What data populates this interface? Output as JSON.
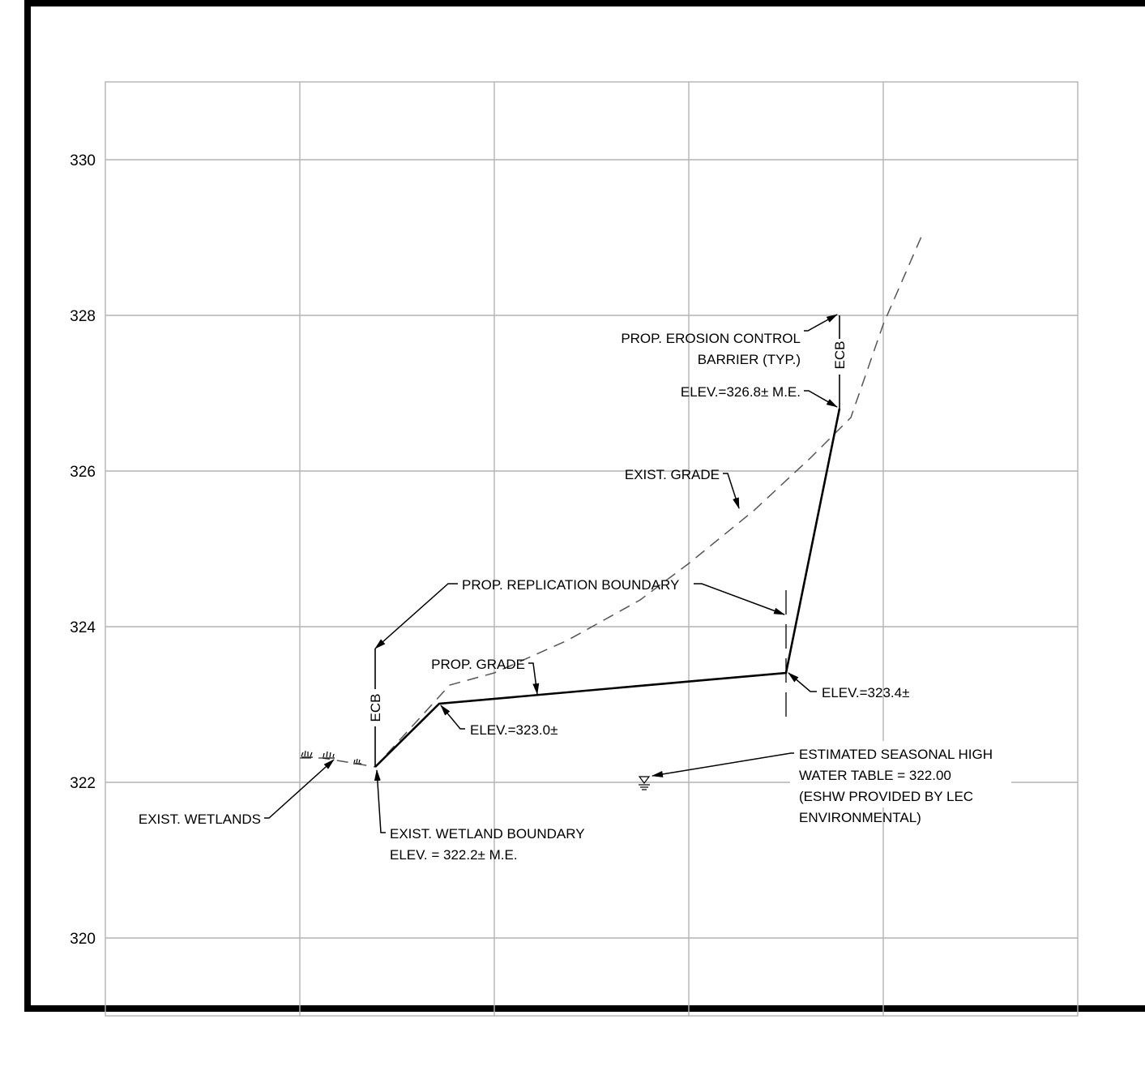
{
  "y_axis": {
    "ticks": [
      {
        "value": 330,
        "label": "330"
      },
      {
        "value": 328,
        "label": "328"
      },
      {
        "value": 326,
        "label": "326"
      },
      {
        "value": 324,
        "label": "324"
      },
      {
        "value": 322,
        "label": "322"
      },
      {
        "value": 320,
        "label": "320"
      }
    ]
  },
  "annotations": {
    "erosion_barrier_line1": "PROP. EROSION CONTROL",
    "erosion_barrier_line2": "BARRIER (TYP.)",
    "ecb_label": "ECB",
    "elev_326_8": "ELEV.=326.8± M.E.",
    "exist_grade": "EXIST. GRADE",
    "replication_boundary": "PROP. REPLICATION BOUNDARY",
    "prop_grade": "PROP. GRADE",
    "elev_323_4": "ELEV.=323.4±",
    "elev_323_0": "ELEV.=323.0±",
    "eshw_line1": "ESTIMATED SEASONAL HIGH",
    "eshw_line2": "WATER TABLE = 322.00",
    "eshw_line3": "(ESHW PROVIDED BY LEC",
    "eshw_line4": "ENVIRONMENTAL)",
    "exist_wetlands": "EXIST. WETLANDS",
    "wetland_boundary_line1": "EXIST. WETLAND BOUNDARY",
    "wetland_boundary_line2": "ELEV. = 322.2± M.E."
  },
  "colors": {
    "grid": "#b3b3b3",
    "ink": "#000000",
    "exist_grade_dash": "#555555"
  }
}
